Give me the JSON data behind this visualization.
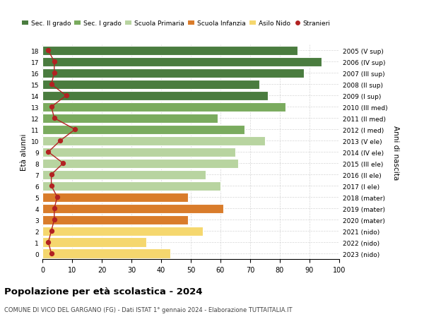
{
  "ages": [
    18,
    17,
    16,
    15,
    14,
    13,
    12,
    11,
    10,
    9,
    8,
    7,
    6,
    5,
    4,
    3,
    2,
    1,
    0
  ],
  "right_labels": [
    "2005 (V sup)",
    "2006 (IV sup)",
    "2007 (III sup)",
    "2008 (II sup)",
    "2009 (I sup)",
    "2010 (III med)",
    "2011 (II med)",
    "2012 (I med)",
    "2013 (V ele)",
    "2014 (IV ele)",
    "2015 (III ele)",
    "2016 (II ele)",
    "2017 (I ele)",
    "2018 (mater)",
    "2019 (mater)",
    "2020 (mater)",
    "2021 (nido)",
    "2022 (nido)",
    "2023 (nido)"
  ],
  "bar_values": [
    86,
    94,
    88,
    73,
    76,
    82,
    59,
    68,
    75,
    65,
    66,
    55,
    60,
    49,
    61,
    49,
    54,
    35,
    43
  ],
  "stranieri": [
    2,
    4,
    4,
    3,
    8,
    3,
    4,
    11,
    6,
    2,
    7,
    3,
    3,
    5,
    4,
    4,
    3,
    2,
    3
  ],
  "bar_colors": [
    "#4a7c3f",
    "#4a7c3f",
    "#4a7c3f",
    "#4a7c3f",
    "#4a7c3f",
    "#7aab5e",
    "#7aab5e",
    "#7aab5e",
    "#b8d4a0",
    "#b8d4a0",
    "#b8d4a0",
    "#b8d4a0",
    "#b8d4a0",
    "#d97c2b",
    "#d97c2b",
    "#d97c2b",
    "#f5d76e",
    "#f5d76e",
    "#f5d76e"
  ],
  "legend_labels": [
    "Sec. II grado",
    "Sec. I grado",
    "Scuola Primaria",
    "Scuola Infanzia",
    "Asilo Nido",
    "Stranieri"
  ],
  "legend_colors": [
    "#4a7c3f",
    "#7aab5e",
    "#b8d4a0",
    "#d97c2b",
    "#f5d76e",
    "#b22222"
  ],
  "title": "Popolazione per età scolastica - 2024",
  "subtitle": "COMUNE DI VICO DEL GARGANO (FG) - Dati ISTAT 1° gennaio 2024 - Elaborazione TUTTAITALIA.IT",
  "ylabel_left": "Età alunni",
  "ylabel_right": "Anni di nascita",
  "bg_color": "#ffffff",
  "grid_color": "#cccccc",
  "stranieri_color": "#b22222"
}
